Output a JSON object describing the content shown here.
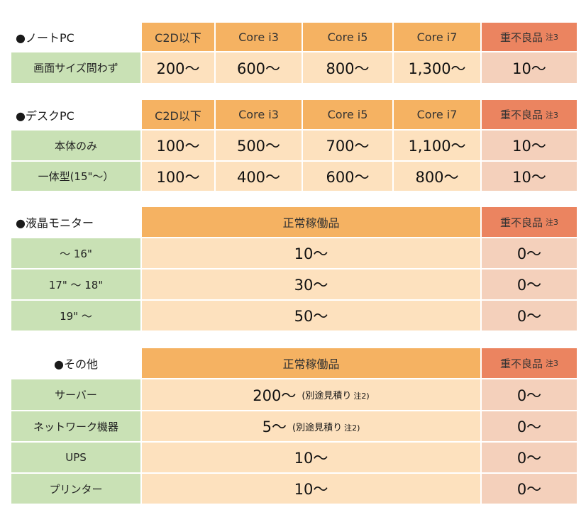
{
  "notebook": {
    "title": "●ノートPC",
    "headers": [
      "C2D以下",
      "Core i3",
      "Core i5",
      "Core i7"
    ],
    "defect_header": "重不良品",
    "defect_note": "注3",
    "rows": [
      {
        "label": "画面サイズ問わず",
        "values": [
          "200〜",
          "600〜",
          "800〜",
          "1,300〜"
        ],
        "defect": "10〜"
      }
    ]
  },
  "desktop": {
    "title": "●デスクPC",
    "headers": [
      "C2D以下",
      "Core i3",
      "Core i5",
      "Core i7"
    ],
    "defect_header": "重不良品",
    "defect_note": "注3",
    "rows": [
      {
        "label": "本体のみ",
        "values": [
          "100〜",
          "500〜",
          "700〜",
          "1,100〜"
        ],
        "defect": "10〜"
      },
      {
        "label": "一体型(15\"〜）",
        "values": [
          "100〜",
          "400〜",
          "600〜",
          "800〜"
        ],
        "defect": "10〜"
      }
    ]
  },
  "monitor": {
    "title": "●液晶モニター",
    "header": "正常稼働品",
    "defect_header": "重不良品",
    "defect_note": "注3",
    "rows": [
      {
        "label": "〜 16\"",
        "value": "10〜",
        "defect": "0〜"
      },
      {
        "label": "17\" 〜 18\"",
        "value": "30〜",
        "defect": "0〜"
      },
      {
        "label": "19\" 〜",
        "value": "50〜",
        "defect": "0〜"
      }
    ]
  },
  "other": {
    "title": "●その他",
    "header": "正常稼働品",
    "defect_header": "重不良品",
    "defect_note": "注3",
    "rows": [
      {
        "label": "サーバー",
        "value": "200〜",
        "sub": "(別途見積り",
        "sub_note": "注2)",
        "defect": "0〜"
      },
      {
        "label": "ネットワーク機器",
        "value": "5〜",
        "sub": "(別途見積り",
        "sub_note": "注2)",
        "defect": "0〜"
      },
      {
        "label": "UPS",
        "value": "10〜",
        "defect": "0〜"
      },
      {
        "label": "プリンター",
        "value": "10〜",
        "defect": "0〜"
      }
    ]
  }
}
